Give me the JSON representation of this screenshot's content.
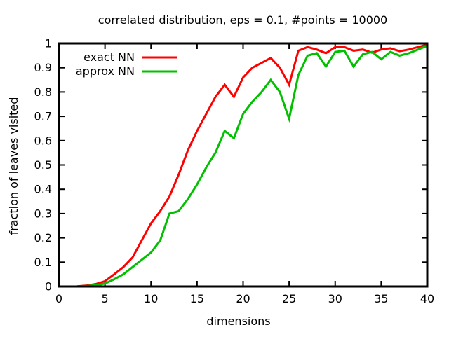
{
  "chart_data": {
    "type": "line",
    "title": "correlated distribution, eps = 0.1, #points = 10000",
    "xlabel": "dimensions",
    "ylabel": "fraction of leaves visited",
    "xlim": [
      0,
      40
    ],
    "ylim": [
      0,
      1
    ],
    "xticks": [
      0,
      5,
      10,
      15,
      20,
      25,
      30,
      35,
      40
    ],
    "xtick_labels": [
      "0",
      "5",
      "10",
      "15",
      "20",
      "25",
      "30",
      "35",
      "40"
    ],
    "yticks": [
      0,
      0.1,
      0.2,
      0.3,
      0.4,
      0.5,
      0.6,
      0.7,
      0.8,
      0.9,
      1
    ],
    "ytick_labels": [
      "0",
      "0.1",
      "0.2",
      "0.3",
      "0.4",
      "0.5",
      "0.6",
      "0.7",
      "0.8",
      "0.9",
      "1"
    ],
    "grid": false,
    "legend_position": "top-left-inside",
    "border_color": "#000000",
    "x": [
      2,
      3,
      4,
      5,
      6,
      7,
      8,
      9,
      10,
      11,
      12,
      13,
      14,
      15,
      16,
      17,
      18,
      19,
      20,
      21,
      22,
      23,
      24,
      25,
      26,
      27,
      28,
      29,
      30,
      31,
      32,
      33,
      34,
      35,
      36,
      37,
      38,
      39,
      40
    ],
    "series": [
      {
        "name": "exact NN",
        "color": "#ff0000",
        "values": [
          0.001,
          0.004,
          0.01,
          0.022,
          0.05,
          0.08,
          0.12,
          0.19,
          0.26,
          0.31,
          0.37,
          0.46,
          0.56,
          0.64,
          0.71,
          0.78,
          0.83,
          0.78,
          0.86,
          0.9,
          0.92,
          0.94,
          0.9,
          0.83,
          0.97,
          0.985,
          0.975,
          0.96,
          0.985,
          0.985,
          0.97,
          0.975,
          0.962,
          0.975,
          0.98,
          0.968,
          0.975,
          0.985,
          0.995
        ]
      },
      {
        "name": "approx NN",
        "color": "#00c000",
        "values": [
          0.0005,
          0.002,
          0.005,
          0.012,
          0.03,
          0.05,
          0.08,
          0.11,
          0.14,
          0.19,
          0.3,
          0.31,
          0.36,
          0.42,
          0.49,
          0.55,
          0.64,
          0.61,
          0.71,
          0.76,
          0.8,
          0.85,
          0.8,
          0.69,
          0.87,
          0.95,
          0.96,
          0.905,
          0.965,
          0.97,
          0.905,
          0.955,
          0.965,
          0.935,
          0.965,
          0.95,
          0.96,
          0.975,
          0.99
        ]
      }
    ]
  }
}
